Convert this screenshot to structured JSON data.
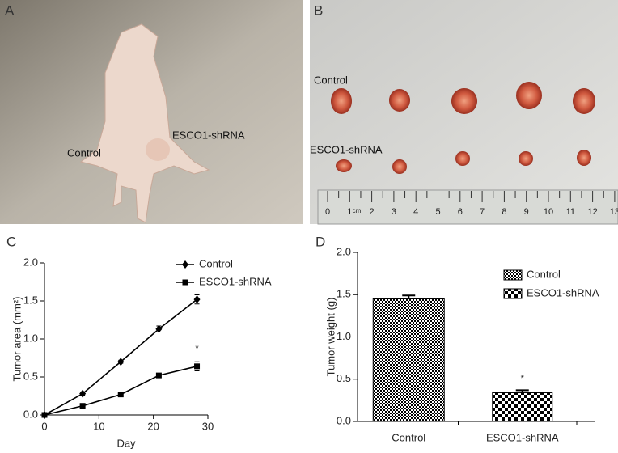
{
  "photo_panels": [
    {
      "label": "A",
      "annotations": [
        "Control",
        "ESCO1-shRNA"
      ]
    },
    {
      "label": "B",
      "annotations": [
        "Control",
        "ESCO1-shRNA"
      ],
      "ruler": {
        "labels": [
          "0",
          "1",
          "2",
          "3",
          "4",
          "5",
          "6",
          "7",
          "8",
          "9",
          "10",
          "11",
          "12",
          "13"
        ],
        "unit": "cm"
      }
    }
  ],
  "chart_data": [
    {
      "type": "line",
      "panel_label": "C",
      "xlabel": "Day",
      "ylabel": "Tumor area (mm²)",
      "x": [
        0,
        7,
        14,
        21,
        28
      ],
      "series": [
        {
          "name": "Control",
          "color": "#000000",
          "marker": "diamond",
          "values": [
            0,
            0.28,
            0.7,
            1.13,
            1.52
          ],
          "errors": [
            0.01,
            0.02,
            0.02,
            0.04,
            0.06
          ]
        },
        {
          "name": "ESCO1-shRNA",
          "color": "#000000",
          "marker": "square",
          "values": [
            0,
            0.12,
            0.27,
            0.52,
            0.64
          ],
          "errors": [
            0.01,
            0.02,
            0.02,
            0.02,
            0.06
          ]
        }
      ],
      "xlim": [
        0,
        30
      ],
      "xticks": [
        0,
        10,
        20,
        30
      ],
      "ylim": [
        0,
        2
      ],
      "yticks": [
        {
          "value": 0,
          "label": "0.0"
        },
        {
          "value": 0.5,
          "label": "0.5"
        },
        {
          "value": 1,
          "label": "1.0"
        },
        {
          "value": 1.5,
          "label": "1.5"
        },
        {
          "value": 2,
          "label": "2.0"
        }
      ],
      "annotation": "*",
      "legend": "upper right"
    },
    {
      "type": "bar",
      "panel_label": "D",
      "ylabel": "Tumor weight (g)",
      "categories": [
        "Control",
        "ESCO1-shRNA"
      ],
      "values": [
        1.45,
        0.34
      ],
      "errors": [
        0.04,
        0.03
      ],
      "color": "#000000",
      "patterns": [
        "fine-check",
        "coarse-check"
      ],
      "ylim": [
        0,
        2
      ],
      "yticks": [
        {
          "value": 0,
          "label": "0.0"
        },
        {
          "value": 0.5,
          "label": "0.5"
        },
        {
          "value": 1,
          "label": "1.0"
        },
        {
          "value": 1.5,
          "label": "1.5"
        },
        {
          "value": 2,
          "label": "2.0"
        }
      ],
      "annotation": "*",
      "legend": "upper right"
    }
  ]
}
